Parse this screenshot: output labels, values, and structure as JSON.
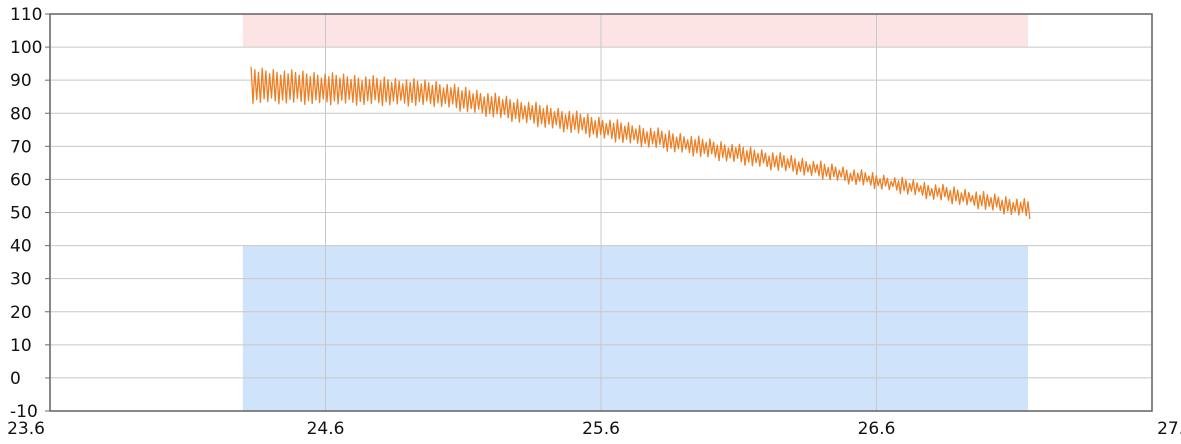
{
  "chart_data": {
    "type": "line",
    "title": "",
    "xlabel": "",
    "ylabel": "",
    "xlim": [
      23.6,
      27.6
    ],
    "ylim": [
      -10,
      110
    ],
    "x_ticks": [
      23.6,
      24.6,
      25.6,
      26.6,
      27.6
    ],
    "x_tick_labels": [
      "23.6",
      "24.6",
      "25.6",
      "26.6",
      "27.6"
    ],
    "y_ticks": [
      -10,
      0,
      10,
      20,
      30,
      40,
      50,
      60,
      70,
      80,
      90,
      100,
      110
    ],
    "y_tick_labels": [
      "-10",
      "0",
      "10",
      "20",
      "30",
      "40",
      "50",
      "60",
      "70",
      "80",
      "90",
      "100",
      "110"
    ],
    "grid": true,
    "bands": [
      {
        "x": [
          24.3,
          27.15
        ],
        "y": [
          -10,
          40
        ],
        "color": "#cfe3fb"
      },
      {
        "x": [
          24.3,
          27.15
        ],
        "y": [
          100,
          110
        ],
        "color": "#fde4e4"
      }
    ],
    "series": [
      {
        "color": "#ee7f24",
        "x_range": [
          24.33,
          27.15
        ],
        "y_upper_trend": [
          [
            24.33,
            94
          ],
          [
            25.0,
            90
          ],
          [
            25.6,
            79
          ],
          [
            26.2,
            69
          ],
          [
            26.6,
            62
          ],
          [
            27.15,
            54
          ]
        ],
        "y_lower_trend": [
          [
            24.33,
            83
          ],
          [
            25.0,
            82
          ],
          [
            25.6,
            72
          ],
          [
            26.2,
            63
          ],
          [
            26.6,
            57
          ],
          [
            27.15,
            48
          ]
        ],
        "oscillation_count": 210
      }
    ]
  }
}
